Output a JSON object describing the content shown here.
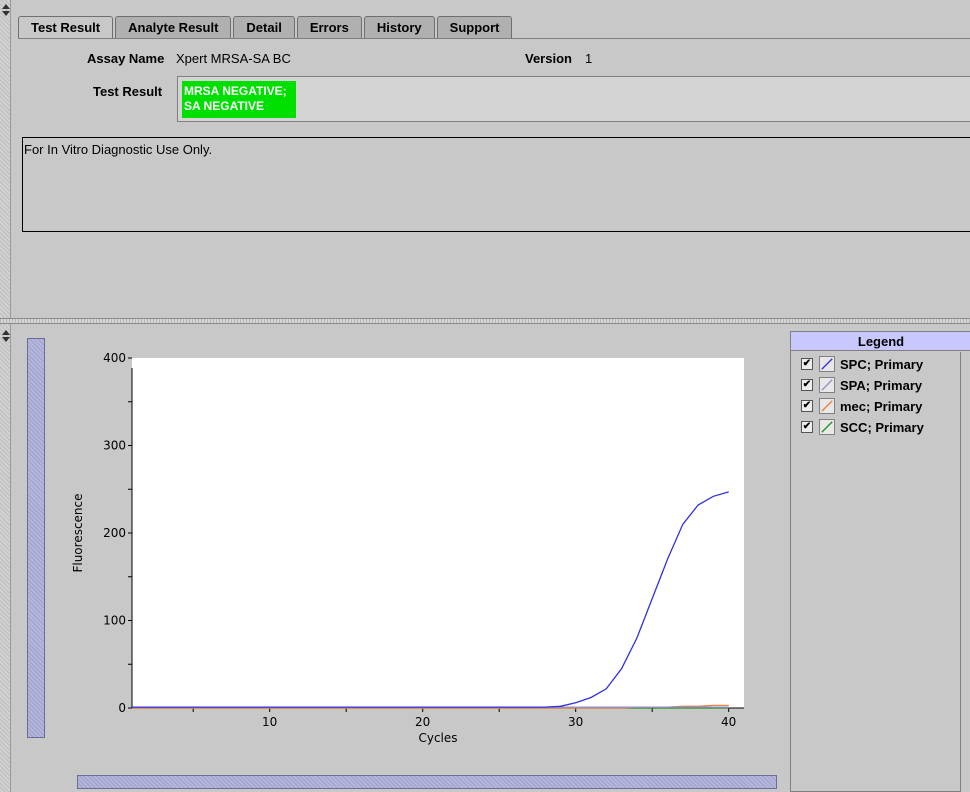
{
  "tabs": [
    "Test Result",
    "Analyte Result",
    "Detail",
    "Errors",
    "History",
    "Support"
  ],
  "header": {
    "assay_name_label": "Assay Name",
    "assay_name_value": "Xpert MRSA-SA BC",
    "version_label": "Version",
    "version_value": "1",
    "test_result_label": "Test Result",
    "test_result_line1": "MRSA NEGATIVE;",
    "test_result_line2": "SA NEGATIVE"
  },
  "notes": {
    "text": "For In Vitro Diagnostic Use Only."
  },
  "legend": {
    "title": "Legend",
    "items": [
      {
        "label": "SPC; Primary",
        "color": "#3030e0",
        "checked": true
      },
      {
        "label": "SPA; Primary",
        "color": "#9090c8",
        "checked": true
      },
      {
        "label": "mec; Primary",
        "color": "#f08040",
        "checked": true
      },
      {
        "label": "SCC; Primary",
        "color": "#209020",
        "checked": true
      }
    ]
  },
  "chart_data": {
    "type": "line",
    "xlabel": "Cycles",
    "ylabel": "Fluorescence",
    "xlim": [
      1,
      41
    ],
    "ylim": [
      0,
      400
    ],
    "x_ticks": [
      10,
      20,
      30,
      40
    ],
    "y_ticks": [
      0,
      100,
      200,
      300,
      400
    ],
    "x": [
      1,
      2,
      3,
      4,
      5,
      6,
      7,
      8,
      9,
      10,
      11,
      12,
      13,
      14,
      15,
      16,
      17,
      18,
      19,
      20,
      21,
      22,
      23,
      24,
      25,
      26,
      27,
      28,
      29,
      30,
      31,
      32,
      33,
      34,
      35,
      36,
      37,
      38,
      39,
      40
    ],
    "series": [
      {
        "name": "SPC; Primary",
        "color": "#3030e0",
        "values": [
          1,
          1,
          1,
          1,
          1,
          1,
          1,
          1,
          1,
          1,
          1,
          1,
          1,
          1,
          1,
          1,
          1,
          1,
          1,
          1,
          1,
          1,
          1,
          1,
          1,
          1,
          1,
          1,
          2,
          6,
          12,
          22,
          45,
          80,
          125,
          170,
          210,
          232,
          242,
          247
        ]
      },
      {
        "name": "SPA; Primary",
        "color": "#9090c8",
        "values": [
          1,
          1,
          1,
          1,
          1,
          1,
          1,
          1,
          1,
          1,
          1,
          1,
          1,
          1,
          1,
          1,
          1,
          1,
          1,
          1,
          1,
          1,
          1,
          1,
          1,
          1,
          1,
          1,
          1,
          1,
          1,
          1,
          1,
          1,
          1,
          1,
          1,
          1,
          1,
          1
        ]
      },
      {
        "name": "mec; Primary",
        "color": "#f08040",
        "values": [
          0,
          0,
          0,
          0,
          0,
          0,
          0,
          0,
          0,
          0,
          0,
          0,
          0,
          0,
          0,
          0,
          0,
          0,
          0,
          0,
          0,
          0,
          0,
          0,
          0,
          0,
          0,
          0,
          0,
          0,
          0,
          0,
          0,
          1,
          1,
          1,
          2,
          2,
          3,
          3
        ]
      },
      {
        "name": "SCC; Primary",
        "color": "#209020",
        "values": [
          0,
          0,
          0,
          0,
          0,
          0,
          0,
          0,
          0,
          0,
          0,
          0,
          0,
          0,
          0,
          0,
          0,
          0,
          0,
          0,
          0,
          0,
          0,
          0,
          0,
          0,
          0,
          0,
          0,
          0,
          0,
          0,
          0,
          0,
          0,
          0,
          0,
          0,
          0,
          0
        ]
      }
    ]
  }
}
